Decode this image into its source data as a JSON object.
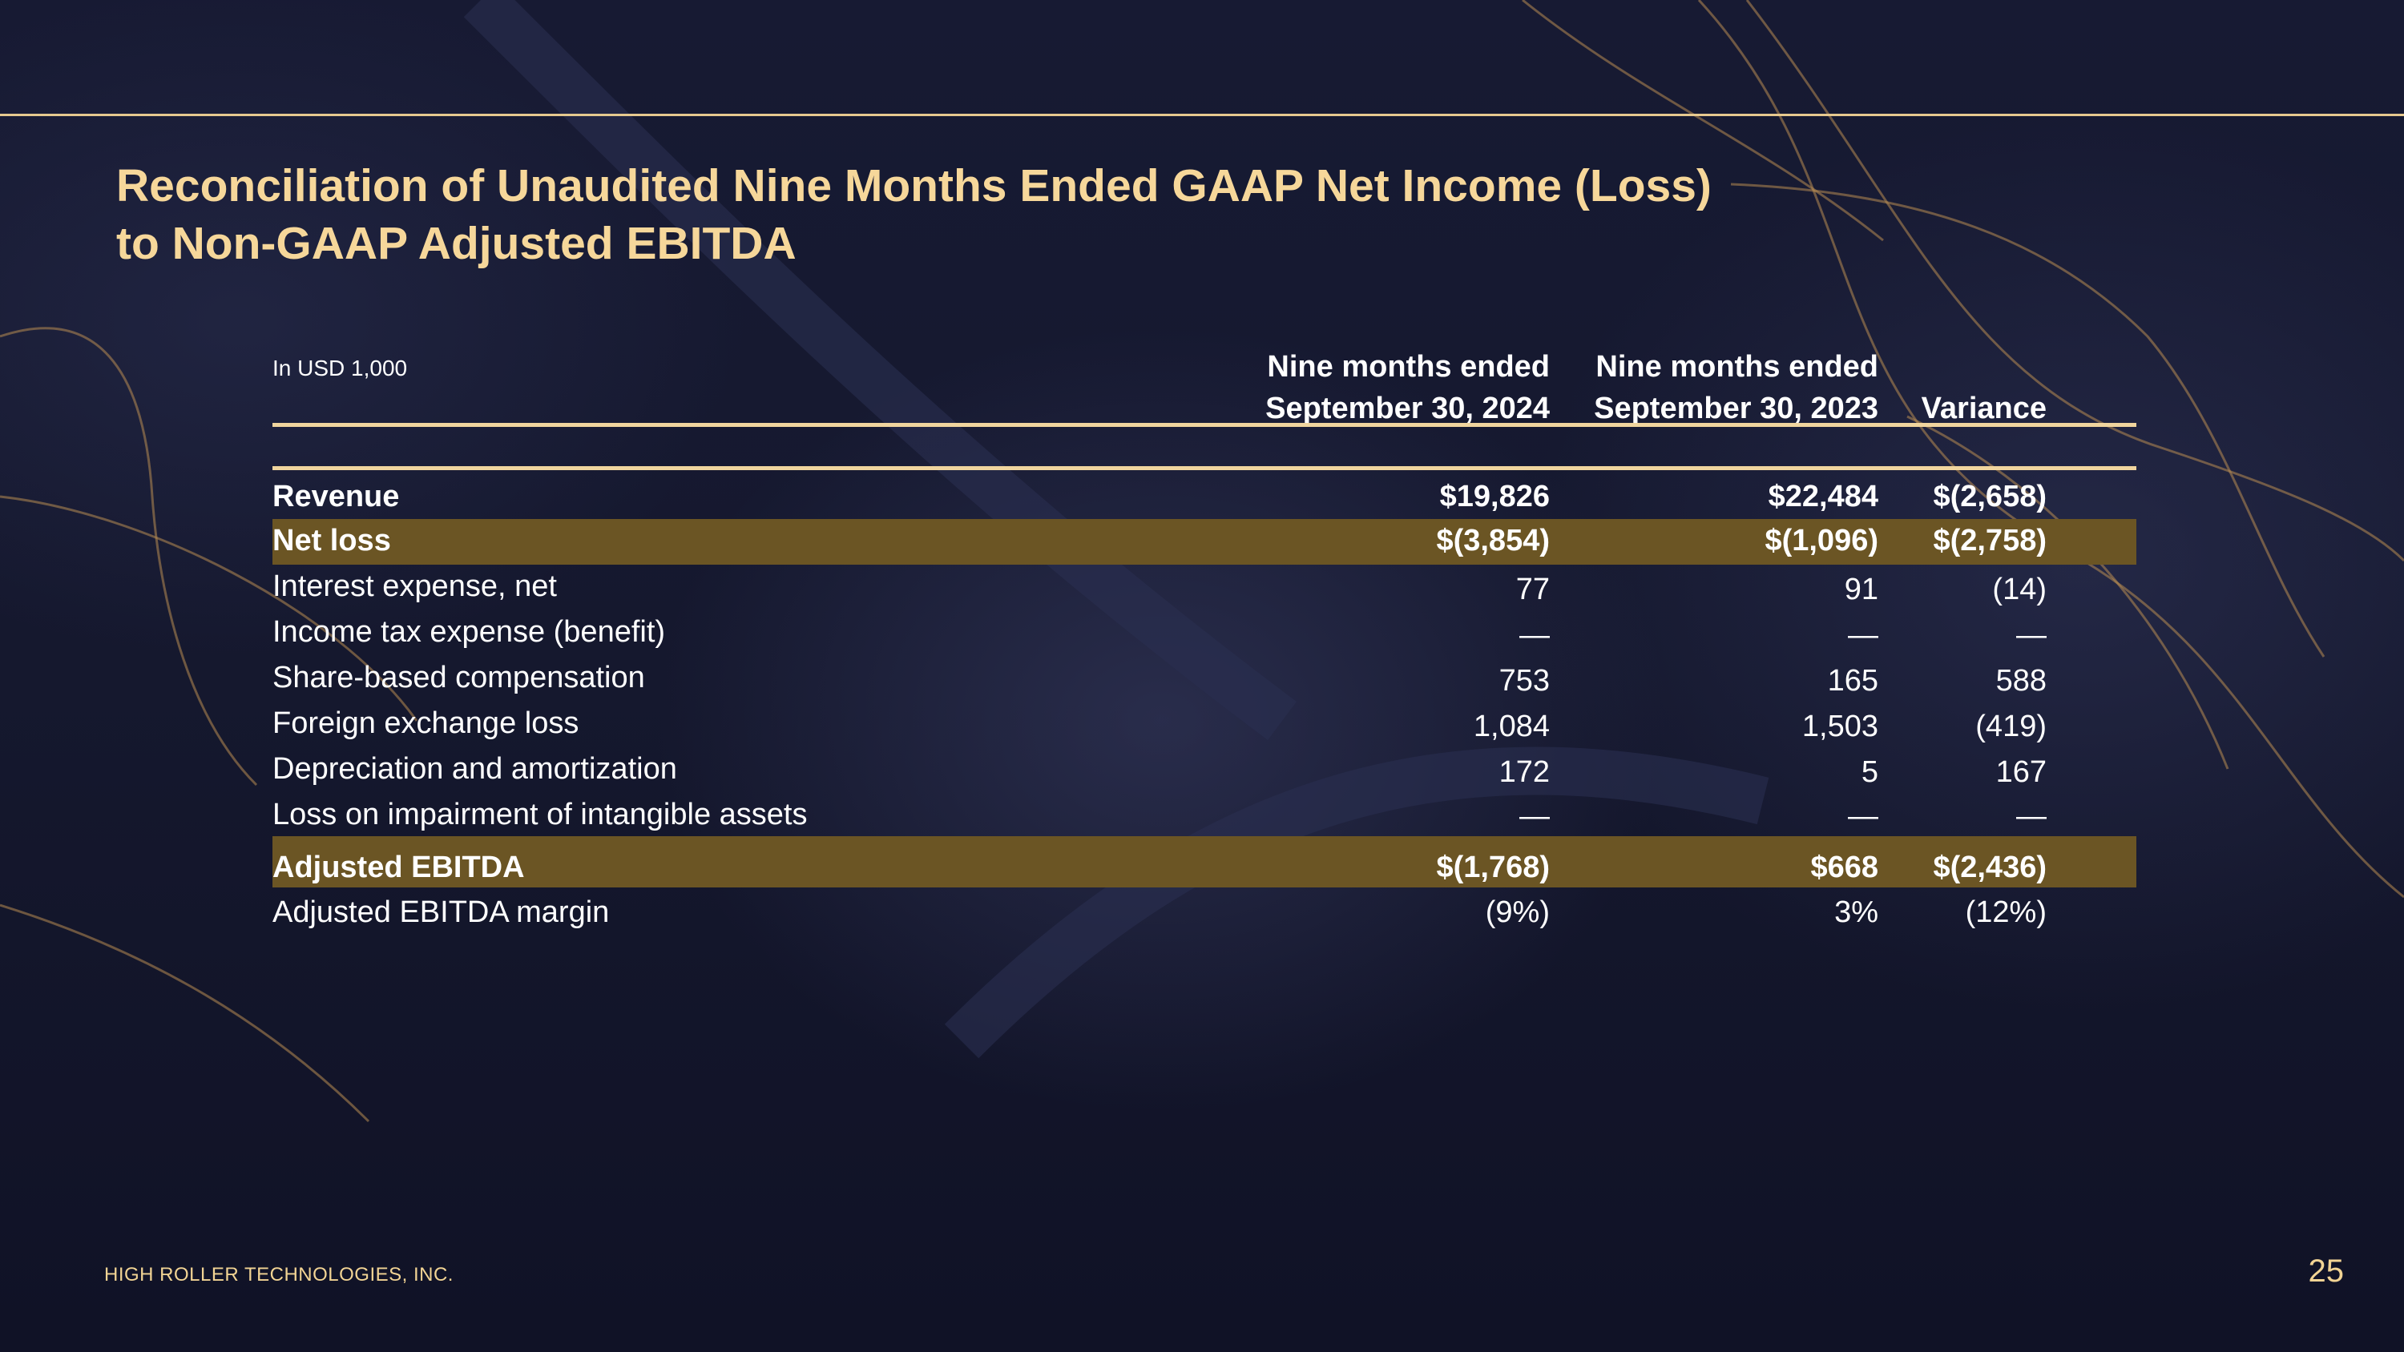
{
  "title": {
    "line1": "Reconciliation of Unaudited Nine Months Ended GAAP Net Income (Loss)",
    "line2": "to Non-GAAP Adjusted EBITDA"
  },
  "table": {
    "unit_note": "In USD 1,000",
    "headers": [
      {
        "line1": "Nine months ended",
        "line2": "September  30, 2024"
      },
      {
        "line1": "Nine months ended",
        "line2": "September  30, 2023"
      },
      {
        "line1": "",
        "line2": "Variance"
      }
    ],
    "rows": [
      {
        "label": "Revenue",
        "v2024": "$19,826",
        "v2023": "$22,484",
        "variance": "$(2,658)"
      },
      {
        "label": "Net loss",
        "v2024": "$(3,854)",
        "v2023": "$(1,096)",
        "variance": "$(2,758)"
      },
      {
        "label": "Interest expense, net",
        "v2024": "77",
        "v2023": "91",
        "variance": "(14)"
      },
      {
        "label": "Income tax expense (benefit)",
        "v2024": "—",
        "v2023": "—",
        "variance": "—"
      },
      {
        "label": "Share-based compensation",
        "v2024": "753",
        "v2023": "165",
        "variance": "588"
      },
      {
        "label": "Foreign exchange loss",
        "v2024": "1,084",
        "v2023": "1,503",
        "variance": "(419)"
      },
      {
        "label": "Depreciation and amortization",
        "v2024": "172",
        "v2023": "5",
        "variance": "167"
      },
      {
        "label": "Loss on impairment of intangible assets",
        "v2024": "—",
        "v2023": "—",
        "variance": "—"
      },
      {
        "label": "Adjusted EBITDA",
        "v2024": "$(1,768)",
        "v2023": "$668",
        "variance": "$(2,436)"
      },
      {
        "label": "Adjusted EBITDA margin",
        "v2024": "(9%)",
        "v2023": "3%",
        "variance": "(12%)"
      }
    ]
  },
  "footer": {
    "company": "HIGH ROLLER TECHNOLOGIES, INC.",
    "page_number": "25"
  },
  "colors": {
    "title_gold": "#f6d79a",
    "rule_gold": "#f0d59e",
    "highlight_row": "#6b5524",
    "background": "#15182e"
  }
}
